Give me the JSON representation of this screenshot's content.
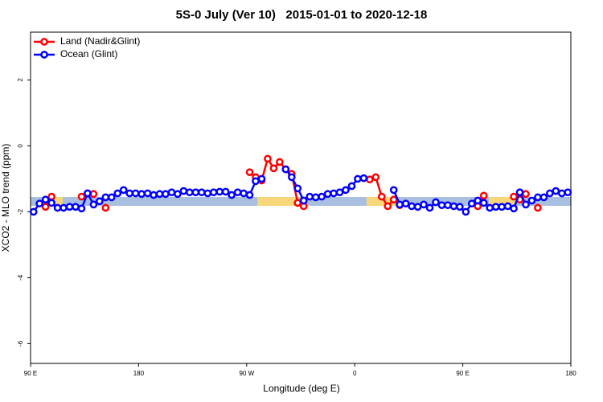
{
  "chart_data": {
    "type": "line",
    "title": "5S-0 July (Ver 10)   2015-01-01 to 2020-12-18",
    "xlabel": "Longitude (deg E)",
    "ylabel": "XCO2 - MLO trend (ppm)",
    "x": [
      92.5,
      97.5,
      102.5,
      107.5,
      112.5,
      117.5,
      122.5,
      127.5,
      132.5,
      137.5,
      142.5,
      147.5,
      152.5,
      157.5,
      162.5,
      167.5,
      172.5,
      177.5,
      182.5,
      187.5,
      192.5,
      197.5,
      202.5,
      207.5,
      212.5,
      217.5,
      222.5,
      227.5,
      232.5,
      237.5,
      242.5,
      247.5,
      252.5,
      257.5,
      262.5,
      267.5,
      272.5,
      277.5,
      282.5,
      287.5,
      292.5,
      297.5,
      302.5,
      307.5,
      312.5,
      317.5,
      322.5,
      327.5,
      332.5,
      337.5,
      342.5,
      347.5,
      352.5,
      357.5,
      362.5,
      367.5,
      372.5,
      377.5,
      382.5,
      387.5,
      392.5,
      397.5,
      402.5,
      407.5,
      412.5,
      417.5,
      422.5,
      427.5,
      432.5,
      437.5,
      442.5,
      447.5,
      452.5,
      457.5,
      462.5,
      467.5,
      472.5,
      477.5,
      482.5,
      487.5,
      492.5,
      497.5,
      502.5,
      507.5,
      512.5,
      517.5,
      522.5,
      527.5,
      532.5,
      537.5
    ],
    "series": [
      {
        "name": "Land (Nadir&Glint)",
        "color": "#ff0000",
        "values": [
          null,
          null,
          -1.85,
          -1.54,
          null,
          null,
          null,
          null,
          -1.54,
          -1.44,
          -1.46,
          null,
          -1.88,
          null,
          null,
          null,
          null,
          null,
          null,
          null,
          null,
          null,
          null,
          null,
          null,
          null,
          null,
          null,
          null,
          null,
          null,
          null,
          null,
          null,
          null,
          null,
          -0.8,
          -0.95,
          -1.05,
          -0.39,
          -0.68,
          -0.49,
          -0.71,
          -0.85,
          -1.73,
          -1.83,
          null,
          null,
          null,
          null,
          null,
          null,
          null,
          null,
          null,
          null,
          -1.02,
          -0.95,
          -1.54,
          -1.83,
          -1.63,
          -1.8,
          null,
          null,
          null,
          null,
          null,
          null,
          null,
          null,
          null,
          null,
          null,
          null,
          -1.83,
          -1.51,
          null,
          null,
          null,
          null,
          -1.54,
          -1.63,
          -1.46,
          null,
          -1.88,
          null,
          null,
          null,
          null,
          null
        ]
      },
      {
        "name": "Ocean (Glint)",
        "color": "#0000ff",
        "values": [
          -2.0,
          -1.75,
          -1.63,
          -1.73,
          -1.88,
          -1.88,
          -1.85,
          -1.85,
          -1.9,
          -1.44,
          -1.78,
          -1.68,
          -1.56,
          -1.56,
          -1.44,
          -1.34,
          -1.44,
          -1.44,
          -1.46,
          -1.44,
          -1.49,
          -1.46,
          -1.46,
          -1.41,
          -1.46,
          -1.37,
          -1.41,
          -1.41,
          -1.41,
          -1.44,
          -1.41,
          -1.39,
          -1.39,
          -1.49,
          -1.41,
          -1.44,
          -1.49,
          -1.07,
          -1.0,
          null,
          null,
          null,
          -0.71,
          -0.95,
          -1.29,
          -1.66,
          -1.54,
          -1.56,
          -1.54,
          -1.46,
          -1.44,
          -1.41,
          -1.34,
          -1.22,
          -1.0,
          -0.98,
          null,
          null,
          null,
          null,
          -1.34,
          -1.78,
          -1.75,
          -1.83,
          -1.85,
          -1.78,
          -1.88,
          -1.71,
          -1.8,
          -1.8,
          -1.83,
          -1.85,
          -2.0,
          -1.75,
          -1.66,
          -1.73,
          -1.88,
          -1.85,
          -1.85,
          -1.83,
          -1.9,
          -1.41,
          -1.78,
          -1.66,
          -1.56,
          -1.56,
          -1.44,
          -1.37,
          -1.44,
          -1.41
        ]
      }
    ],
    "xlim": [
      90,
      540
    ],
    "xticks": [
      {
        "value": 90,
        "label": "90 E"
      },
      180,
      {
        "value": 270,
        "label": "90 W"
      },
      {
        "value": 360,
        "label": "0"
      },
      {
        "value": 450,
        "label": "90 E"
      },
      {
        "value": 540,
        "label": "180"
      }
    ],
    "ylim": [
      -6.6,
      3.45
    ],
    "yticks": [
      -6,
      -4,
      -2,
      0,
      2
    ],
    "legend": "top-left"
  }
}
